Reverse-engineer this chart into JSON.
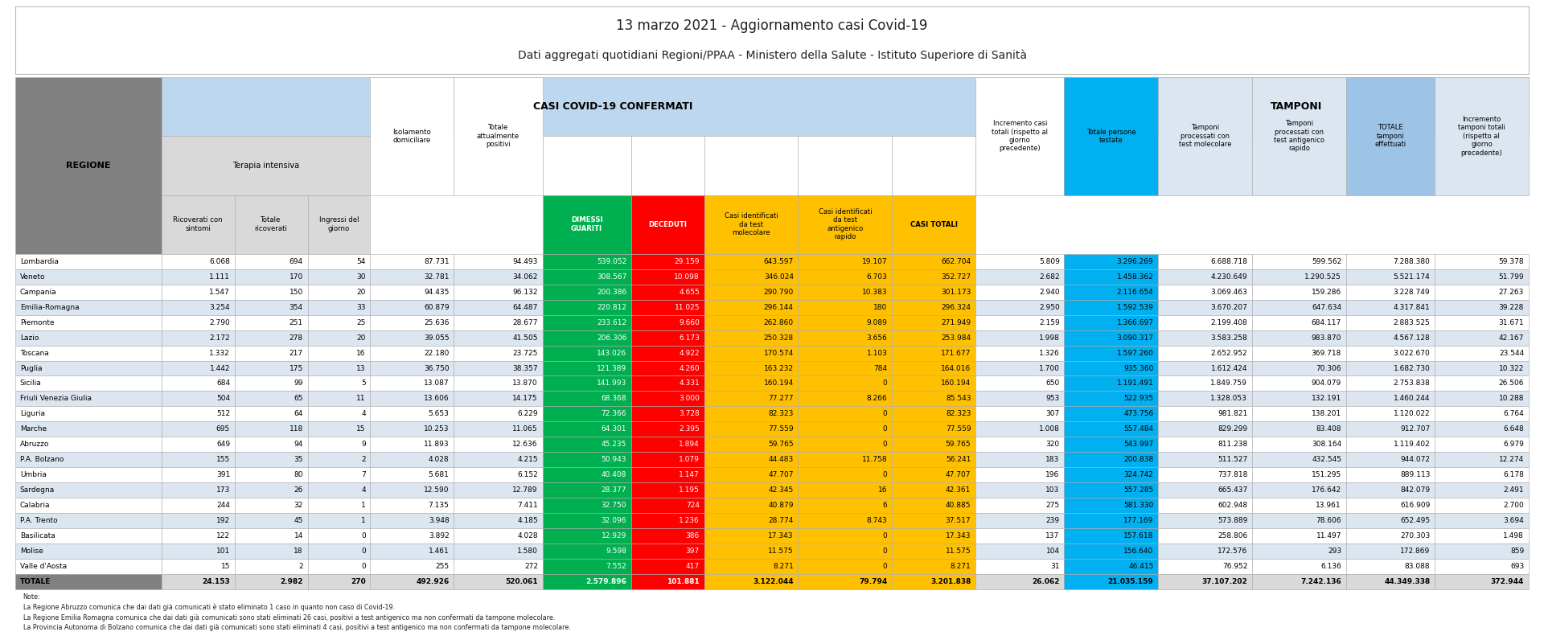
{
  "title1": "13 marzo 2021 - Aggiornamento casi Covid-19",
  "title2": "Dati aggregati quotidiani Regioni/PPAA - Ministero della Salute - Istituto Superiore di Sanità",
  "note": "Note:\nLa Regione Abruzzo comunica che dai dati già comunicati è stato eliminato 1 caso in quanto non caso di Covid-19.\nLa Regione Emilia Romagna comunica che dai dati già comunicati sono stati eliminati 26 casi, positivi a test antigenico ma non confermati da tampone molecolare.\nLa Provincia Autonoma di Bolzano comunica che dai dati già comunicati sono stati eliminati 4 casi, positivi a test antigenico ma non confermati da tampone molecolare.",
  "rows": [
    [
      "Lombardia",
      "6.068",
      "694",
      "54",
      "87.731",
      "94.493",
      "539.052",
      "29.159",
      "643.597",
      "19.107",
      "662.704",
      "5.809",
      "3.296.269",
      "6.688.718",
      "599.562",
      "7.288.380",
      "59.378"
    ],
    [
      "Veneto",
      "1.111",
      "170",
      "30",
      "32.781",
      "34.062",
      "308.567",
      "10.098",
      "346.024",
      "6.703",
      "352.727",
      "2.682",
      "1.458.362",
      "4.230.649",
      "1.290.525",
      "5.521.174",
      "51.799"
    ],
    [
      "Campania",
      "1.547",
      "150",
      "20",
      "94.435",
      "96.132",
      "200.386",
      "4.655",
      "290.790",
      "10.383",
      "301.173",
      "2.940",
      "2.116.654",
      "3.069.463",
      "159.286",
      "3.228.749",
      "27.263"
    ],
    [
      "Emilia-Romagna",
      "3.254",
      "354",
      "33",
      "60.879",
      "64.487",
      "220.812",
      "11.025",
      "296.144",
      "180",
      "296.324",
      "2.950",
      "1.592.539",
      "3.670.207",
      "647.634",
      "4.317.841",
      "39.228"
    ],
    [
      "Piemonte",
      "2.790",
      "251",
      "25",
      "25.636",
      "28.677",
      "233.612",
      "9.660",
      "262.860",
      "9.089",
      "271.949",
      "2.159",
      "1.366.697",
      "2.199.408",
      "684.117",
      "2.883.525",
      "31.671"
    ],
    [
      "Lazio",
      "2.172",
      "278",
      "20",
      "39.055",
      "41.505",
      "206.306",
      "6.173",
      "250.328",
      "3.656",
      "253.984",
      "1.998",
      "3.090.317",
      "3.583.258",
      "983.870",
      "4.567.128",
      "42.167"
    ],
    [
      "Toscana",
      "1.332",
      "217",
      "16",
      "22.180",
      "23.725",
      "143.026",
      "4.922",
      "170.574",
      "1.103",
      "171.677",
      "1.326",
      "1.597.260",
      "2.652.952",
      "369.718",
      "3.022.670",
      "23.544"
    ],
    [
      "Puglia",
      "1.442",
      "175",
      "13",
      "36.750",
      "38.357",
      "121.389",
      "4.260",
      "163.232",
      "784",
      "164.016",
      "1.700",
      "935.360",
      "1.612.424",
      "70.306",
      "1.682.730",
      "10.322"
    ],
    [
      "Sicilia",
      "684",
      "99",
      "5",
      "13.087",
      "13.870",
      "141.993",
      "4.331",
      "160.194",
      "0",
      "160.194",
      "650",
      "1.191.491",
      "1.849.759",
      "904.079",
      "2.753.838",
      "26.506"
    ],
    [
      "Friuli Venezia Giulia",
      "504",
      "65",
      "11",
      "13.606",
      "14.175",
      "68.368",
      "3.000",
      "77.277",
      "8.266",
      "85.543",
      "953",
      "522.935",
      "1.328.053",
      "132.191",
      "1.460.244",
      "10.288"
    ],
    [
      "Liguria",
      "512",
      "64",
      "4",
      "5.653",
      "6.229",
      "72.366",
      "3.728",
      "82.323",
      "0",
      "82.323",
      "307",
      "473.756",
      "981.821",
      "138.201",
      "1.120.022",
      "6.764"
    ],
    [
      "Marche",
      "695",
      "118",
      "15",
      "10.253",
      "11.065",
      "64.301",
      "2.395",
      "77.559",
      "0",
      "77.559",
      "1.008",
      "557.484",
      "829.299",
      "83.408",
      "912.707",
      "6.648"
    ],
    [
      "Abruzzo",
      "649",
      "94",
      "9",
      "11.893",
      "12.636",
      "45.235",
      "1.894",
      "59.765",
      "0",
      "59.765",
      "320",
      "543.997",
      "811.238",
      "308.164",
      "1.119.402",
      "6.979"
    ],
    [
      "P.A. Bolzano",
      "155",
      "35",
      "2",
      "4.028",
      "4.215",
      "50.943",
      "1.079",
      "44.483",
      "11.758",
      "56.241",
      "183",
      "200.838",
      "511.527",
      "432.545",
      "944.072",
      "12.274"
    ],
    [
      "Umbria",
      "391",
      "80",
      "7",
      "5.681",
      "6.152",
      "40.408",
      "1.147",
      "47.707",
      "0",
      "47.707",
      "196",
      "324.742",
      "737.818",
      "151.295",
      "889.113",
      "6.178"
    ],
    [
      "Sardegna",
      "173",
      "26",
      "4",
      "12.590",
      "12.789",
      "28.377",
      "1.195",
      "42.345",
      "16",
      "42.361",
      "103",
      "557.285",
      "665.437",
      "176.642",
      "842.079",
      "2.491"
    ],
    [
      "Calabria",
      "244",
      "32",
      "1",
      "7.135",
      "7.411",
      "32.750",
      "724",
      "40.879",
      "6",
      "40.885",
      "275",
      "581.330",
      "602.948",
      "13.961",
      "616.909",
      "2.700"
    ],
    [
      "P.A. Trento",
      "192",
      "45",
      "1",
      "3.948",
      "4.185",
      "32.096",
      "1.236",
      "28.774",
      "8.743",
      "37.517",
      "239",
      "177.169",
      "573.889",
      "78.606",
      "652.495",
      "3.694"
    ],
    [
      "Basilicata",
      "122",
      "14",
      "0",
      "3.892",
      "4.028",
      "12.929",
      "386",
      "17.343",
      "0",
      "17.343",
      "137",
      "157.618",
      "258.806",
      "11.497",
      "270.303",
      "1.498"
    ],
    [
      "Molise",
      "101",
      "18",
      "0",
      "1.461",
      "1.580",
      "9.598",
      "397",
      "11.575",
      "0",
      "11.575",
      "104",
      "156.640",
      "172.576",
      "293",
      "172.869",
      "859"
    ],
    [
      "Valle d'Aosta",
      "15",
      "2",
      "0",
      "255",
      "272",
      "7.552",
      "417",
      "8.271",
      "0",
      "8.271",
      "31",
      "46.415",
      "76.952",
      "6.136",
      "83.088",
      "693"
    ]
  ],
  "totals": [
    "TOTALE",
    "24.153",
    "2.982",
    "270",
    "492.926",
    "520.061",
    "2.579.896",
    "101.881",
    "3.122.044",
    "79.794",
    "3.201.838",
    "26.062",
    "21.035.159",
    "37.107.202",
    "7.242.136",
    "44.349.338",
    "372.944"
  ],
  "col_widths": [
    1.4,
    0.7,
    0.7,
    0.6,
    0.8,
    0.85,
    0.85,
    0.7,
    0.9,
    0.9,
    0.8,
    0.85,
    0.9,
    0.9,
    0.9,
    0.85,
    0.9
  ],
  "bg_color": "#ffffff",
  "header_bg_gray": "#808080",
  "header_bg_light_gray": "#d9d9d9",
  "terapia_bg": "#d9d9d9",
  "casi_header_bg": "#bdd7ee",
  "dimessi_bg": "#00b050",
  "deceduti_bg": "#ff0000",
  "casi_mol_bg": "#ffc000",
  "tamponi_header_bg": "#9dc3e6",
  "totale_persone_bg": "#00b0f0",
  "row_alt1": "#ffffff",
  "row_alt2": "#dce6f1",
  "totals_row_bg": "#d9d9d9"
}
